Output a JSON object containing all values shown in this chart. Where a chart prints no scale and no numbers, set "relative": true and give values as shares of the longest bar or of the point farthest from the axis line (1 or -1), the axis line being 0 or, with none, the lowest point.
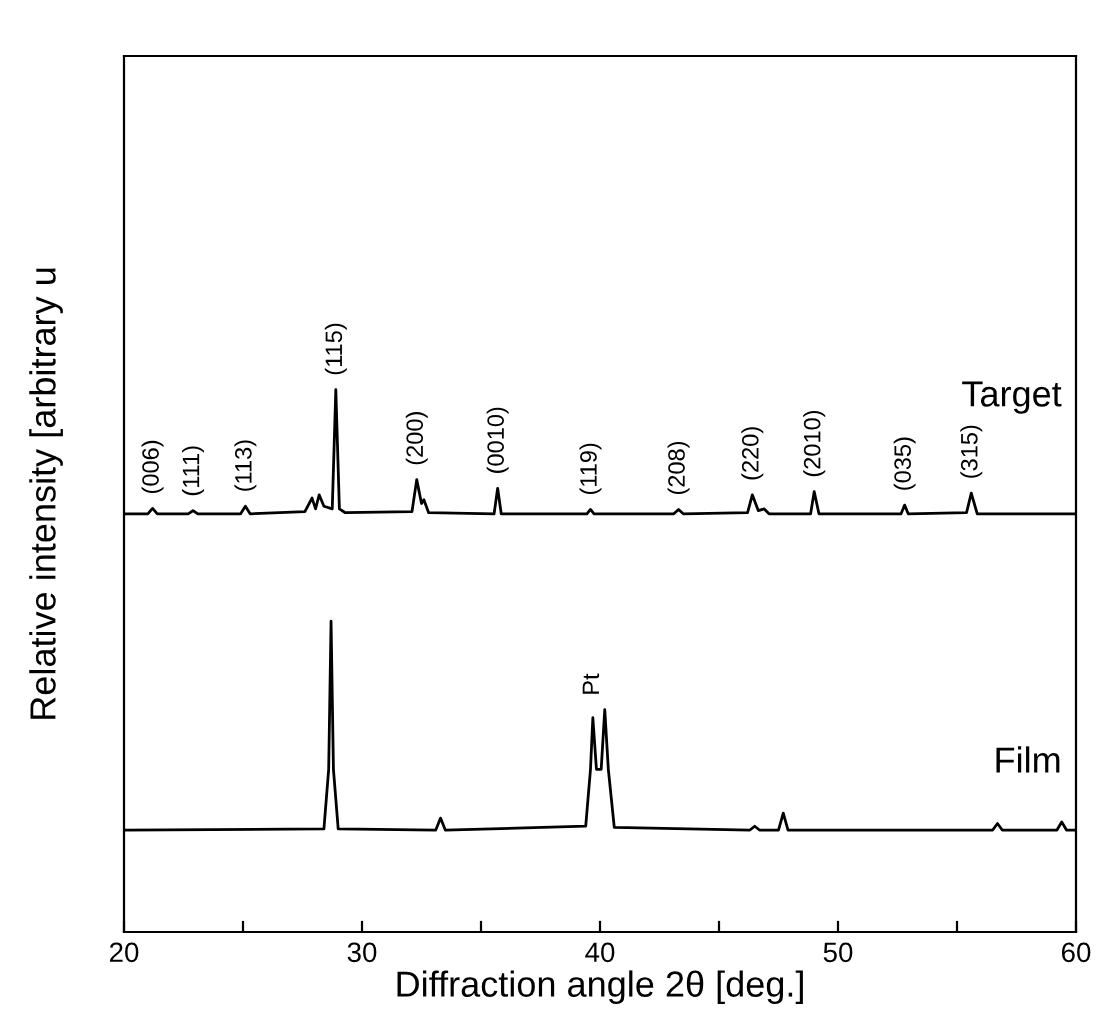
{
  "chart_data": {
    "type": "line",
    "relative": true,
    "xlabel": "Diffraction angle 2θ [deg.]",
    "ylabel": "Relative intensity [arbitrary u",
    "xlim": [
      20,
      60
    ],
    "xticks": [
      20,
      {
        "value": 25,
        "label": null
      },
      30,
      {
        "value": 35,
        "label": null
      },
      40,
      {
        "value": 45,
        "label": null
      },
      50,
      {
        "value": 55,
        "label": null
      },
      60
    ],
    "grid": false,
    "legend": false,
    "marker": "none",
    "line_style": "solid",
    "series": [
      {
        "name": "Target",
        "color": "#000000",
        "x": [
          20,
          21.0,
          21.2,
          21.4,
          22.7,
          22.9,
          23.1,
          24.9,
          25.1,
          25.3,
          27.6,
          27.9,
          28.05,
          28.2,
          28.4,
          28.75,
          28.9,
          29.05,
          29.3,
          32.1,
          32.3,
          32.5,
          32.6,
          32.8,
          35.55,
          35.7,
          35.85,
          39.45,
          39.6,
          39.75,
          43.1,
          43.3,
          43.5,
          46.2,
          46.4,
          46.65,
          46.9,
          47.1,
          48.85,
          49.0,
          49.2,
          52.65,
          52.8,
          52.95,
          55.4,
          55.6,
          55.85,
          60
        ],
        "values": [
          0.771,
          0.771,
          0.781,
          0.771,
          0.771,
          0.777,
          0.771,
          0.771,
          0.785,
          0.771,
          0.775,
          0.8,
          0.78,
          0.806,
          0.785,
          0.78,
          1.0,
          0.78,
          0.773,
          0.775,
          0.834,
          0.79,
          0.797,
          0.773,
          0.771,
          0.818,
          0.771,
          0.771,
          0.779,
          0.771,
          0.771,
          0.779,
          0.771,
          0.773,
          0.806,
          0.777,
          0.78,
          0.771,
          0.771,
          0.812,
          0.771,
          0.771,
          0.787,
          0.771,
          0.773,
          0.809,
          0.771,
          0.771
        ]
      },
      {
        "name": "Film",
        "color": "#000000",
        "x": [
          20,
          28.4,
          28.6,
          28.7,
          28.8,
          29.0,
          33.1,
          33.3,
          33.5,
          39.4,
          39.6,
          39.7,
          39.85,
          40.05,
          40.2,
          40.35,
          40.6,
          46.3,
          46.5,
          46.7,
          47.5,
          47.7,
          47.9,
          56.5,
          56.7,
          56.9,
          59.2,
          59.4,
          59.6,
          60
        ],
        "values": [
          0.188,
          0.19,
          0.3,
          0.573,
          0.3,
          0.19,
          0.188,
          0.21,
          0.188,
          0.195,
          0.3,
          0.395,
          0.3,
          0.3,
          0.41,
          0.3,
          0.193,
          0.188,
          0.195,
          0.188,
          0.188,
          0.219,
          0.188,
          0.188,
          0.2,
          0.188,
          0.188,
          0.203,
          0.188,
          0.188
        ]
      }
    ],
    "annotations": [
      {
        "text": "(006)",
        "x": 21.2,
        "y": 0.781
      },
      {
        "text": "(111)",
        "x": 22.9,
        "y": 0.777
      },
      {
        "text": "(113)",
        "x": 25.1,
        "y": 0.785
      },
      {
        "text": "(115)",
        "x": 28.9,
        "y": 1.0
      },
      {
        "text": "(200)",
        "x": 32.3,
        "y": 0.834
      },
      {
        "text": "(0010)",
        "x": 35.7,
        "y": 0.818
      },
      {
        "text": "(119)",
        "x": 39.6,
        "y": 0.779
      },
      {
        "text": "(208)",
        "x": 43.3,
        "y": 0.779
      },
      {
        "text": "(220)",
        "x": 46.4,
        "y": 0.806
      },
      {
        "text": "(2010)",
        "x": 49.0,
        "y": 0.812
      },
      {
        "text": "(035)",
        "x": 52.8,
        "y": 0.787
      },
      {
        "text": "(315)",
        "x": 55.6,
        "y": 0.809
      },
      {
        "text": "Pt",
        "x": 39.7,
        "y": 0.41
      }
    ]
  }
}
